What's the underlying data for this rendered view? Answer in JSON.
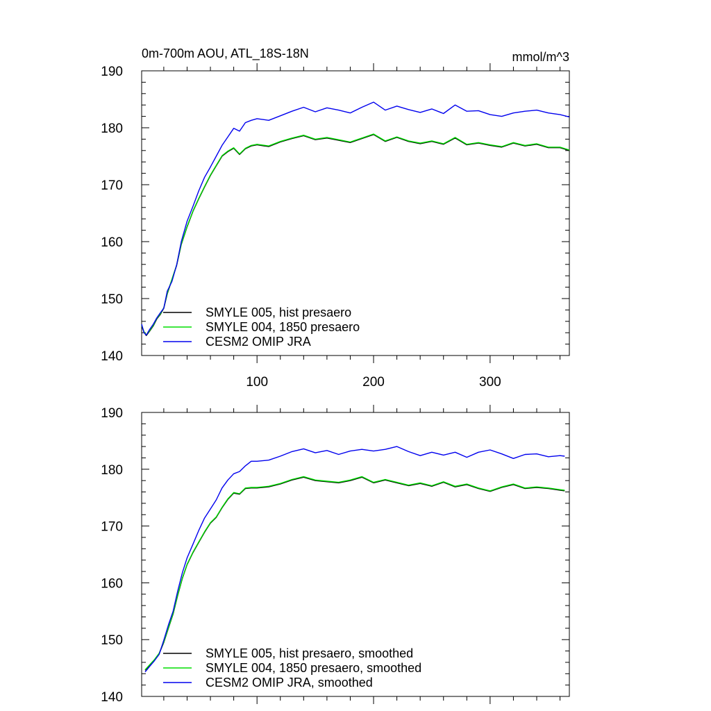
{
  "colors": {
    "hist": "#000000",
    "pi1850": "#00dd00",
    "omip": "#0000ee",
    "axis": "#000000",
    "background": "#ffffff"
  },
  "chart_data": [
    {
      "type": "line",
      "title": "0m-700m AOU, ATL_18S-18N",
      "units": "mmol/m^3",
      "xlim": [
        1,
        368
      ],
      "ylim": [
        140,
        190
      ],
      "xticks": [
        100,
        200,
        300
      ],
      "xtick_labels": [
        "100",
        "200",
        "300"
      ],
      "yticks": [
        140,
        150,
        160,
        170,
        180,
        190
      ],
      "ytick_labels": [
        "140",
        "150",
        "160",
        "170",
        "180",
        "190"
      ],
      "legend_position": "lower-left",
      "grid": false,
      "smoothed": false,
      "series": [
        {
          "name": "SMYLE 005, hist presaero",
          "color_key": "hist",
          "x": [
            1,
            3,
            5,
            8,
            11,
            14,
            17,
            20,
            23,
            27,
            31,
            35,
            40,
            45,
            50,
            55,
            60,
            65,
            70,
            75,
            80,
            85,
            90,
            95,
            100,
            110,
            120,
            130,
            140,
            150,
            160,
            170,
            180,
            190,
            200,
            210,
            220,
            230,
            240,
            250,
            260,
            270,
            280,
            290,
            300,
            310,
            320,
            330,
            340,
            350,
            360,
            368
          ],
          "y": [
            145.2,
            144.1,
            143.5,
            144.3,
            145.2,
            146.4,
            147.2,
            148.3,
            150.8,
            153.3,
            155.8,
            159.5,
            162.6,
            165.3,
            167.5,
            169.6,
            171.6,
            173.3,
            175.0,
            175.8,
            176.4,
            175.3,
            176.3,
            176.8,
            177.0,
            176.7,
            177.5,
            178.1,
            178.6,
            177.9,
            178.2,
            177.8,
            177.4,
            178.1,
            178.8,
            177.6,
            178.3,
            177.6,
            177.2,
            177.6,
            177.1,
            178.2,
            177.0,
            177.3,
            176.9,
            176.6,
            177.3,
            176.8,
            177.1,
            176.5,
            176.5,
            176.0
          ]
        },
        {
          "name": "SMYLE 004, 1850 presaero",
          "color_key": "pi1850",
          "x": [
            1,
            3,
            5,
            8,
            11,
            14,
            17,
            20,
            23,
            27,
            31,
            35,
            40,
            45,
            50,
            55,
            60,
            65,
            70,
            75,
            80,
            85,
            90,
            95,
            100,
            110,
            120,
            130,
            140,
            150,
            160,
            170,
            180,
            190,
            200,
            210,
            220,
            230,
            240,
            250,
            260,
            270,
            280,
            290,
            300,
            310,
            320,
            330,
            340,
            350,
            360,
            368
          ],
          "y": [
            145.3,
            144.2,
            143.6,
            144.4,
            145.3,
            146.5,
            147.3,
            148.4,
            150.9,
            153.4,
            155.9,
            159.6,
            162.7,
            165.4,
            167.6,
            169.7,
            171.7,
            173.4,
            175.1,
            175.9,
            176.5,
            175.4,
            176.4,
            176.9,
            177.1,
            176.8,
            177.6,
            178.2,
            178.7,
            178.0,
            178.3,
            177.9,
            177.5,
            178.2,
            178.9,
            177.7,
            178.4,
            177.7,
            177.3,
            177.7,
            177.2,
            178.3,
            177.1,
            177.4,
            177.0,
            176.7,
            177.4,
            176.9,
            177.2,
            176.6,
            176.6,
            176.1
          ]
        },
        {
          "name": "CESM2 OMIP JRA",
          "color_key": "omip",
          "x": [
            1,
            3,
            5,
            8,
            11,
            14,
            17,
            20,
            23,
            27,
            31,
            35,
            40,
            45,
            50,
            55,
            60,
            65,
            70,
            75,
            80,
            85,
            90,
            95,
            100,
            110,
            120,
            130,
            140,
            150,
            160,
            170,
            180,
            190,
            200,
            210,
            220,
            230,
            240,
            250,
            260,
            270,
            280,
            290,
            300,
            310,
            320,
            330,
            340,
            350,
            360,
            368
          ],
          "y": [
            145.5,
            144.0,
            143.6,
            144.6,
            145.5,
            146.6,
            147.5,
            148.3,
            151.3,
            153.0,
            155.9,
            160.0,
            163.6,
            166.2,
            168.9,
            171.3,
            173.1,
            175.0,
            176.9,
            178.4,
            179.9,
            179.4,
            180.9,
            181.3,
            181.6,
            181.3,
            182.1,
            182.9,
            183.6,
            182.8,
            183.5,
            183.1,
            182.6,
            183.6,
            184.5,
            183.1,
            183.8,
            183.2,
            182.7,
            183.3,
            182.5,
            184.0,
            182.9,
            183.0,
            182.3,
            182.0,
            182.6,
            182.9,
            183.1,
            182.6,
            182.3,
            181.9
          ]
        }
      ]
    },
    {
      "type": "line",
      "title": "",
      "units": "",
      "xlim": [
        1,
        368
      ],
      "ylim": [
        140,
        190
      ],
      "xticks": [
        100,
        200,
        300
      ],
      "xtick_labels": [],
      "yticks": [
        140,
        150,
        160,
        170,
        180,
        190
      ],
      "ytick_labels": [
        "140",
        "150",
        "160",
        "170",
        "180",
        "190"
      ],
      "legend_position": "lower-left",
      "grid": false,
      "smoothed": true,
      "series": [
        {
          "name": "SMYLE 005, hist presaero, smoothed",
          "color_key": "hist",
          "x": [
            4,
            8,
            12,
            16,
            20,
            24,
            28,
            32,
            36,
            40,
            45,
            50,
            55,
            60,
            65,
            70,
            75,
            80,
            85,
            90,
            95,
            100,
            110,
            120,
            130,
            140,
            150,
            160,
            170,
            180,
            190,
            200,
            210,
            220,
            230,
            240,
            250,
            260,
            270,
            280,
            290,
            300,
            310,
            320,
            330,
            340,
            350,
            360,
            364
          ],
          "y": [
            144.6,
            145.5,
            146.4,
            147.5,
            149.5,
            152.0,
            154.5,
            157.8,
            160.8,
            163.2,
            165.3,
            167.1,
            168.9,
            170.5,
            171.5,
            173.2,
            174.7,
            175.8,
            175.6,
            176.6,
            176.7,
            176.7,
            176.9,
            177.4,
            178.1,
            178.6,
            178.0,
            177.8,
            177.6,
            178.0,
            178.6,
            177.6,
            178.1,
            177.6,
            177.1,
            177.5,
            177.0,
            177.7,
            176.9,
            177.3,
            176.6,
            176.1,
            176.8,
            177.3,
            176.6,
            176.8,
            176.6,
            176.3,
            176.2
          ]
        },
        {
          "name": "SMYLE 004, 1850 presaero, smoothed",
          "color_key": "pi1850",
          "x": [
            4,
            8,
            12,
            16,
            20,
            24,
            28,
            32,
            36,
            40,
            45,
            50,
            55,
            60,
            65,
            70,
            75,
            80,
            85,
            90,
            95,
            100,
            110,
            120,
            130,
            140,
            150,
            160,
            170,
            180,
            190,
            200,
            210,
            220,
            230,
            240,
            250,
            260,
            270,
            280,
            290,
            300,
            310,
            320,
            330,
            340,
            350,
            360,
            364
          ],
          "y": [
            144.7,
            145.6,
            146.5,
            147.6,
            149.6,
            152.1,
            154.6,
            157.9,
            160.9,
            163.3,
            165.4,
            167.2,
            169.0,
            170.6,
            171.6,
            173.3,
            174.8,
            175.9,
            175.7,
            176.7,
            176.8,
            176.8,
            177.0,
            177.5,
            178.2,
            178.7,
            178.1,
            177.9,
            177.7,
            178.1,
            178.7,
            177.7,
            178.2,
            177.7,
            177.2,
            177.6,
            177.1,
            177.8,
            177.0,
            177.4,
            176.7,
            176.2,
            176.9,
            177.4,
            176.7,
            176.9,
            176.7,
            176.4,
            176.3
          ]
        },
        {
          "name": "CESM2 OMIP JRA, smoothed",
          "color_key": "omip",
          "x": [
            4,
            8,
            12,
            16,
            20,
            24,
            28,
            32,
            36,
            40,
            45,
            50,
            55,
            60,
            65,
            70,
            75,
            80,
            85,
            90,
            95,
            100,
            110,
            120,
            130,
            140,
            150,
            160,
            170,
            180,
            190,
            200,
            210,
            220,
            230,
            240,
            250,
            260,
            270,
            280,
            290,
            300,
            310,
            320,
            330,
            340,
            350,
            360,
            364
          ],
          "y": [
            144.3,
            145.3,
            146.3,
            147.4,
            149.9,
            152.6,
            155.0,
            158.6,
            161.8,
            164.4,
            166.8,
            169.2,
            171.4,
            173.0,
            174.6,
            176.7,
            178.1,
            179.2,
            179.6,
            180.6,
            181.4,
            181.4,
            181.6,
            182.3,
            183.1,
            183.6,
            182.9,
            183.3,
            182.6,
            183.2,
            183.5,
            183.2,
            183.5,
            184.0,
            183.1,
            182.4,
            183.0,
            182.5,
            183.0,
            182.1,
            183.0,
            183.4,
            182.7,
            181.9,
            182.6,
            182.7,
            182.2,
            182.4,
            182.3
          ]
        }
      ]
    }
  ]
}
